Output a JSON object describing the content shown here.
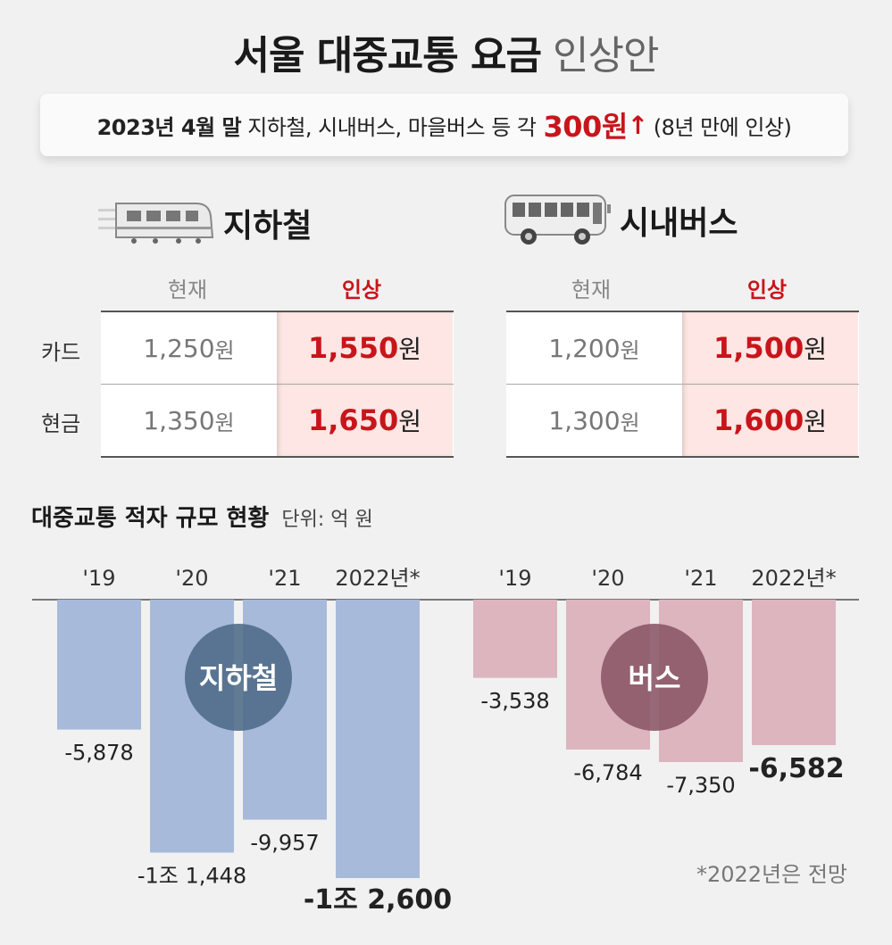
{
  "title": {
    "bold": "서울 대중교통 요금",
    "light": "인상안"
  },
  "banner": {
    "date": "2023년 4월 말",
    "targets": "지하철, 시내버스, 마을버스 등 각",
    "amount": "300원",
    "arrow": "↑",
    "note": "(8년 만에 인상)"
  },
  "subway": {
    "heading": "지하철",
    "icon": "subway-icon",
    "col_now": "현재",
    "col_up": "인상",
    "rows": [
      {
        "label": "카드",
        "now": "1,250",
        "up": "1,550"
      },
      {
        "label": "현금",
        "now": "1,350",
        "up": "1,650"
      }
    ]
  },
  "bus": {
    "heading": "시내버스",
    "icon": "bus-icon",
    "col_now": "현재",
    "col_up": "인상",
    "rows": [
      {
        "label": "카드",
        "now": "1,200",
        "up": "1,500"
      },
      {
        "label": "현금",
        "now": "1,300",
        "up": "1,600"
      }
    ]
  },
  "currency_unit": "원",
  "deficit": {
    "title": "대중교통 적자 규모 현황",
    "unit": "단위: 억 원",
    "note": "*2022년은 전망"
  },
  "chart_data": {
    "type": "bar",
    "title": "대중교통 적자 규모 현황",
    "unit": "억 원",
    "categories": [
      "'19",
      "'20",
      "'21",
      "2022년*"
    ],
    "series": [
      {
        "name": "지하철",
        "values": [
          -5878,
          -11448,
          -9957,
          -12600
        ],
        "labels": [
          "-5,878",
          "-1조 1,448",
          "-9,957",
          "-1조 2,600"
        ],
        "color": "#a7bad9",
        "badge_color": "#4d6a87"
      },
      {
        "name": "버스",
        "values": [
          -3538,
          -6784,
          -7350,
          -6582
        ],
        "labels": [
          "-3,538",
          "-6,784",
          "-7,350",
          "-6,582"
        ],
        "color": "#dcb5bf",
        "badge_color": "#8a5566"
      }
    ],
    "ylim": [
      -12600,
      0
    ],
    "bold_last_label": true
  }
}
